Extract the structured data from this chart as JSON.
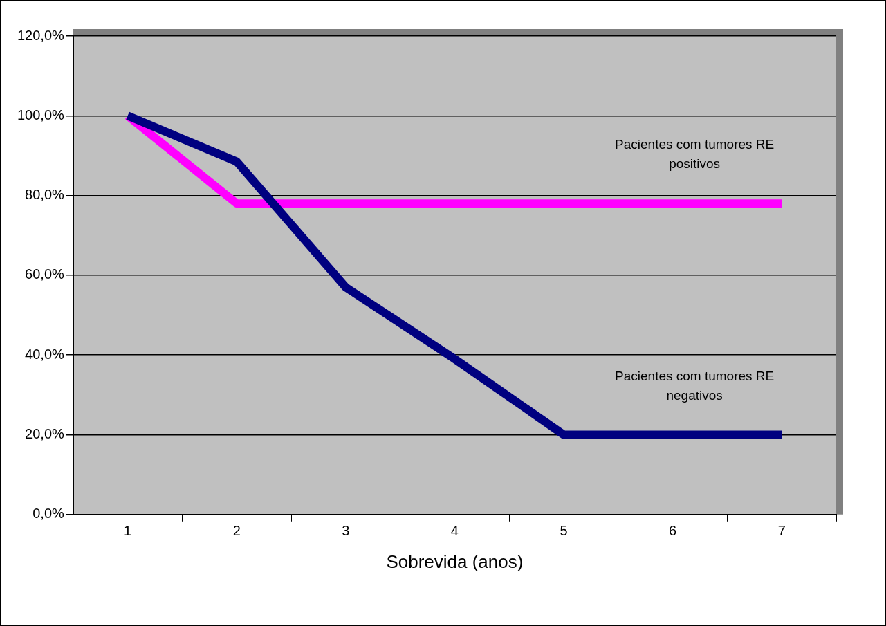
{
  "chart_data": {
    "type": "line",
    "xlabel": "Sobrevida (anos)",
    "categories": [
      "1",
      "2",
      "3",
      "4",
      "5",
      "6",
      "7"
    ],
    "series": [
      {
        "name": "Pacientes com tumores RE negativos",
        "color": "#000080",
        "values": [
          100,
          88.5,
          57,
          39,
          20,
          20,
          20
        ]
      },
      {
        "name": "Pacientes com tumores RE positivos",
        "color": "#ff00ff",
        "values": [
          100,
          78,
          78,
          78,
          78,
          78,
          78
        ]
      }
    ],
    "ylim": [
      0,
      120
    ],
    "yticks": [
      {
        "value": 0,
        "label": "0,0%"
      },
      {
        "value": 20,
        "label": "20,0%"
      },
      {
        "value": 40,
        "label": "40,0%"
      },
      {
        "value": 60,
        "label": "60,0%"
      },
      {
        "value": 80,
        "label": "80,0%"
      },
      {
        "value": 100,
        "label": "100,0%"
      },
      {
        "value": 120,
        "label": "120,0%"
      }
    ],
    "grid": "y",
    "legend": false,
    "marker": "none",
    "line_style": "solid"
  }
}
